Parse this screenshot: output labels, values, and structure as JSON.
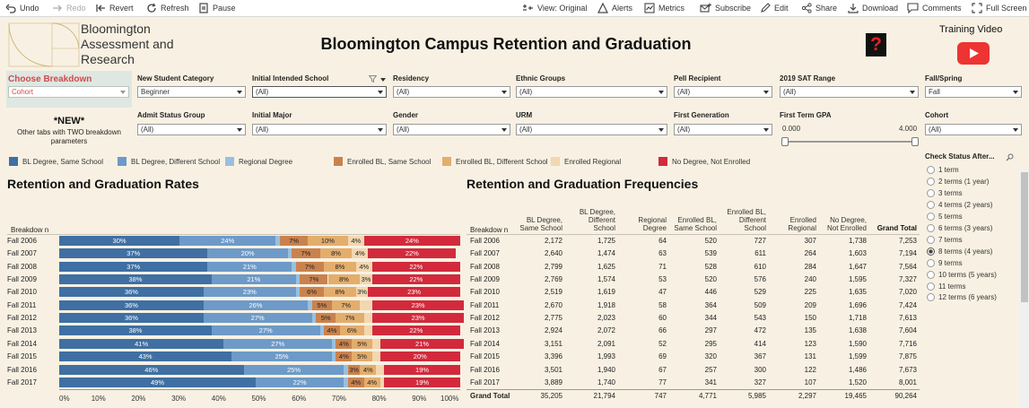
{
  "toolbar": {
    "undo": "Undo",
    "redo": "Redo",
    "revert": "Revert",
    "refresh": "Refresh",
    "pause": "Pause",
    "view": "View: Original",
    "alerts": "Alerts",
    "metrics": "Metrics",
    "subscribe": "Subscribe",
    "edit": "Edit",
    "share": "Share",
    "download": "Download",
    "comments": "Comments",
    "fullscreen": "Full Screen"
  },
  "header": {
    "logo": [
      "Bloomington",
      "Assessment and",
      "Research"
    ],
    "title": "Bloomington Campus Retention and Graduation",
    "help": "?",
    "training": "Training Video"
  },
  "breakdown": {
    "label": "Choose Breakdown",
    "value": "Cohort",
    "new": "*NEW*",
    "note": "Other tabs with TWO breakdown parameters"
  },
  "filters": [
    {
      "label": "New Student Category",
      "value": "Beginner"
    },
    {
      "label": "Initial Intended School",
      "value": "(All)"
    },
    {
      "label": "Residency",
      "value": "(All)"
    },
    {
      "label": "Ethnic Groups",
      "value": "(All)"
    },
    {
      "label": "Pell Recipient",
      "value": "(All)"
    },
    {
      "label": "2019 SAT Range",
      "value": "(All)"
    },
    {
      "label": "Fall/Spring",
      "value": "Fall"
    },
    {
      "label": "Admit Status Group",
      "value": "(All)"
    },
    {
      "label": "Initial Major",
      "value": "(All)"
    },
    {
      "label": "Gender",
      "value": "(All)"
    },
    {
      "label": "URM",
      "value": "(All)"
    },
    {
      "label": "First Generation",
      "value": "(All)"
    },
    {
      "label": "Cohort",
      "value": "(All)"
    }
  ],
  "gpa": {
    "label": "First Term GPA",
    "min": "0.000",
    "max": "4.000"
  },
  "legend": [
    {
      "label": "BL Degree, Same School",
      "color": "#3f6fa3"
    },
    {
      "label": "BL Degree, Different School",
      "color": "#6d9ac8"
    },
    {
      "label": "Regional Degree",
      "color": "#99bfe0"
    },
    {
      "label": "Enrolled BL, Same School",
      "color": "#c9824e"
    },
    {
      "label": "Enrolled BL, Different School",
      "color": "#e3ad6c"
    },
    {
      "label": "Enrolled Regional",
      "color": "#f2d7b0"
    },
    {
      "label": "No Degree, Not Enrolled",
      "color": "#d22a3c"
    }
  ],
  "rates": {
    "title": "Retention and Graduation Rates",
    "row_header": "Breakdow n",
    "rows": [
      {
        "label": "Fall 2006",
        "segs": [
          "30%",
          "24%",
          "",
          "7%",
          "10%",
          "4%",
          "24%"
        ]
      },
      {
        "label": "Fall 2007",
        "segs": [
          "37%",
          "20%",
          "",
          "7%",
          "8%",
          "4%",
          "22%"
        ]
      },
      {
        "label": "Fall 2008",
        "segs": [
          "37%",
          "21%",
          "",
          "7%",
          "8%",
          "4%",
          "22%"
        ]
      },
      {
        "label": "Fall 2009",
        "segs": [
          "38%",
          "21%",
          "",
          "7%",
          "8%",
          "3%",
          "22%"
        ]
      },
      {
        "label": "Fall 2010",
        "segs": [
          "36%",
          "23%",
          "",
          "6%",
          "8%",
          "3%",
          "23%"
        ]
      },
      {
        "label": "Fall 2011",
        "segs": [
          "36%",
          "26%",
          "",
          "5%",
          "7%",
          "",
          "23%"
        ]
      },
      {
        "label": "Fall 2012",
        "segs": [
          "36%",
          "27%",
          "",
          "5%",
          "7%",
          "",
          "23%"
        ]
      },
      {
        "label": "Fall 2013",
        "segs": [
          "38%",
          "27%",
          "",
          "4%",
          "6%",
          "",
          "22%"
        ]
      },
      {
        "label": "Fall 2014",
        "segs": [
          "41%",
          "27%",
          "",
          "4%",
          "5%",
          "",
          "21%"
        ]
      },
      {
        "label": "Fall 2015",
        "segs": [
          "43%",
          "25%",
          "",
          "4%",
          "5%",
          "",
          "20%"
        ]
      },
      {
        "label": "Fall 2016",
        "segs": [
          "46%",
          "25%",
          "",
          "3%",
          "4%",
          "",
          "19%"
        ]
      },
      {
        "label": "Fall 2017",
        "segs": [
          "49%",
          "22%",
          "",
          "4%",
          "4%",
          "",
          "19%"
        ]
      }
    ],
    "x_ticks": [
      "0%",
      "10%",
      "20%",
      "30%",
      "40%",
      "50%",
      "60%",
      "70%",
      "80%",
      "90%",
      "100%"
    ]
  },
  "chart_data": {
    "type": "bar",
    "title": "Retention and Graduation Rates",
    "categories": [
      "Fall 2006",
      "Fall 2007",
      "Fall 2008",
      "Fall 2009",
      "Fall 2010",
      "Fall 2011",
      "Fall 2012",
      "Fall 2013",
      "Fall 2014",
      "Fall 2015",
      "Fall 2016",
      "Fall 2017"
    ],
    "series": [
      {
        "name": "BL Degree, Same School",
        "values": [
          30,
          37,
          37,
          38,
          36,
          36,
          36,
          38,
          41,
          43,
          46,
          49
        ]
      },
      {
        "name": "BL Degree, Different School",
        "values": [
          24,
          20,
          21,
          21,
          23,
          26,
          27,
          27,
          27,
          25,
          25,
          22
        ]
      },
      {
        "name": "Regional Degree",
        "values": [
          1,
          1,
          1,
          1,
          1,
          1,
          1,
          1,
          1,
          1,
          1,
          1
        ]
      },
      {
        "name": "Enrolled BL, Same School",
        "values": [
          7,
          7,
          7,
          7,
          6,
          5,
          5,
          4,
          4,
          4,
          3,
          4
        ]
      },
      {
        "name": "Enrolled BL, Different School",
        "values": [
          10,
          8,
          8,
          8,
          8,
          7,
          7,
          6,
          5,
          5,
          4,
          4
        ]
      },
      {
        "name": "Enrolled Regional",
        "values": [
          4,
          4,
          4,
          3,
          3,
          3,
          2,
          2,
          2,
          2,
          2,
          1
        ]
      },
      {
        "name": "No Degree, Not Enrolled",
        "values": [
          24,
          22,
          22,
          22,
          23,
          23,
          23,
          22,
          21,
          20,
          19,
          19
        ]
      }
    ],
    "xlim": [
      0,
      100
    ],
    "xlabel": "",
    "ylabel": "Breakdown"
  },
  "freq": {
    "title": "Retention and Graduation Frequencies",
    "row_header": "Breakdow n",
    "columns": [
      [
        "BL Degree,",
        "Same School"
      ],
      [
        "BL Degree,",
        "Different",
        "School"
      ],
      [
        "Regional",
        "Degree"
      ],
      [
        "Enrolled BL,",
        "Same School"
      ],
      [
        "Enrolled BL,",
        "Different",
        "School"
      ],
      [
        "Enrolled",
        "Regional"
      ],
      [
        "No Degree,",
        "Not Enrolled"
      ],
      [
        "Grand Total"
      ]
    ],
    "rows": [
      {
        "label": "Fall 2006",
        "vals": [
          "2,172",
          "1,725",
          "64",
          "520",
          "727",
          "307",
          "1,738",
          "7,253"
        ]
      },
      {
        "label": "Fall 2007",
        "vals": [
          "2,640",
          "1,474",
          "63",
          "539",
          "611",
          "264",
          "1,603",
          "7,194"
        ]
      },
      {
        "label": "Fall 2008",
        "vals": [
          "2,799",
          "1,625",
          "71",
          "528",
          "610",
          "284",
          "1,647",
          "7,564"
        ]
      },
      {
        "label": "Fall 2009",
        "vals": [
          "2,769",
          "1,574",
          "53",
          "520",
          "576",
          "240",
          "1,595",
          "7,327"
        ]
      },
      {
        "label": "Fall 2010",
        "vals": [
          "2,519",
          "1,619",
          "47",
          "446",
          "529",
          "225",
          "1,635",
          "7,020"
        ]
      },
      {
        "label": "Fall 2011",
        "vals": [
          "2,670",
          "1,918",
          "58",
          "364",
          "509",
          "209",
          "1,696",
          "7,424"
        ]
      },
      {
        "label": "Fall 2012",
        "vals": [
          "2,775",
          "2,023",
          "60",
          "344",
          "543",
          "150",
          "1,718",
          "7,613"
        ]
      },
      {
        "label": "Fall 2013",
        "vals": [
          "2,924",
          "2,072",
          "66",
          "297",
          "472",
          "135",
          "1,638",
          "7,604"
        ]
      },
      {
        "label": "Fall 2014",
        "vals": [
          "3,151",
          "2,091",
          "52",
          "295",
          "414",
          "123",
          "1,590",
          "7,716"
        ]
      },
      {
        "label": "Fall 2015",
        "vals": [
          "3,396",
          "1,993",
          "69",
          "320",
          "367",
          "131",
          "1,599",
          "7,875"
        ]
      },
      {
        "label": "Fall 2016",
        "vals": [
          "3,501",
          "1,940",
          "67",
          "257",
          "300",
          "122",
          "1,486",
          "7,673"
        ]
      },
      {
        "label": "Fall 2017",
        "vals": [
          "3,889",
          "1,740",
          "77",
          "341",
          "327",
          "107",
          "1,520",
          "8,001"
        ]
      }
    ],
    "total": {
      "label": "Grand Total",
      "vals": [
        "35,205",
        "21,794",
        "747",
        "4,771",
        "5,985",
        "2,297",
        "19,465",
        "90,264"
      ]
    }
  },
  "status": {
    "label": "Check Status After...",
    "options": [
      "1 term",
      "2 terms (1 year)",
      "3 terms",
      "4 terms (2 years)",
      "5 terms",
      "6 terms (3 years)",
      "7 terms",
      "8 terms (4 years)",
      "9 terms",
      "10 terms (5 years)",
      "11 terms",
      "12 terms (6 years)"
    ],
    "selected": "8 terms (4 years)"
  }
}
